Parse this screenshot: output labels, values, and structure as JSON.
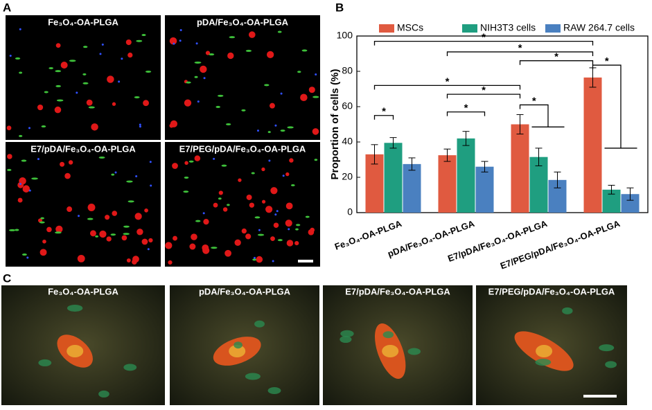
{
  "panels": {
    "a": "A",
    "b": "B",
    "c": "C"
  },
  "panel_a_captions": [
    "Fe₃O₄-OA-PLGA",
    "pDA/Fe₃O₄-OA-PLGA",
    "E7/pDA/Fe₃O₄-OA-PLGA",
    "E7/PEG/pDA/Fe₃O₄-OA-PLGA"
  ],
  "panel_c_captions": [
    "Fe₃O₄-OA-PLGA",
    "pDA/Fe₃O₄-OA-PLGA",
    "E7/pDA/Fe₃O₄-OA-PLGA",
    "E7/PEG/pDA/Fe₃O₄-OA-PLGA"
  ],
  "chart_data": {
    "type": "bar",
    "ylabel": "Proportion of cells (%)",
    "categories": [
      "Fe₃O₄-OA-PLGA",
      "pDA/Fe₃O₄-OA-PLGA",
      "E7/pDA/Fe₃O₄-OA-PLGA",
      "E7/PEG/pDA/Fe₃O₄-OA-PLGA"
    ],
    "series": [
      {
        "name": "MSCs",
        "color": "#e05a40",
        "values": [
          33,
          32.5,
          50,
          76.5
        ],
        "errors": [
          5.5,
          3.5,
          5.5,
          5.5
        ]
      },
      {
        "name": "NIH3T3 cells",
        "color": "#1f9e80",
        "values": [
          39.5,
          42,
          31.5,
          13
        ],
        "errors": [
          3,
          4,
          5,
          2.5
        ]
      },
      {
        "name": "RAW 264.7 cells",
        "color": "#4a80c0",
        "values": [
          27.5,
          26,
          18.5,
          10.5
        ],
        "errors": [
          3.5,
          3,
          4.5,
          3.5
        ]
      }
    ],
    "ylim": [
      0,
      100
    ],
    "yticks": [
      0,
      20,
      40,
      60,
      80,
      100
    ],
    "significance": [
      {
        "from": [
          0,
          0
        ],
        "to": [
          [
            0,
            3
          ]
        ],
        "label": "*"
      },
      {
        "from": [
          0,
          1
        ],
        "to": [
          [
            0,
            3
          ]
        ],
        "label": "*"
      },
      {
        "from": [
          0,
          2
        ],
        "to": [
          [
            0,
            3
          ]
        ],
        "label": "*"
      },
      {
        "from": [
          0,
          3
        ],
        "to": [
          [
            1,
            3
          ],
          [
            2,
            3
          ]
        ],
        "label": "*"
      },
      {
        "from": [
          0,
          0
        ],
        "to": [
          [
            0,
            2
          ]
        ],
        "label": "*"
      },
      {
        "from": [
          0,
          1
        ],
        "to": [
          [
            0,
            2
          ]
        ],
        "label": "*"
      },
      {
        "from": [
          0,
          2
        ],
        "to": [
          [
            1,
            2
          ],
          [
            2,
            2
          ]
        ],
        "label": "*"
      },
      {
        "from": [
          0,
          1
        ],
        "to": [
          [
            2,
            1
          ]
        ],
        "label": "*"
      },
      {
        "from": [
          0,
          0
        ],
        "to": [
          [
            1,
            0
          ]
        ],
        "label": "*"
      }
    ]
  }
}
